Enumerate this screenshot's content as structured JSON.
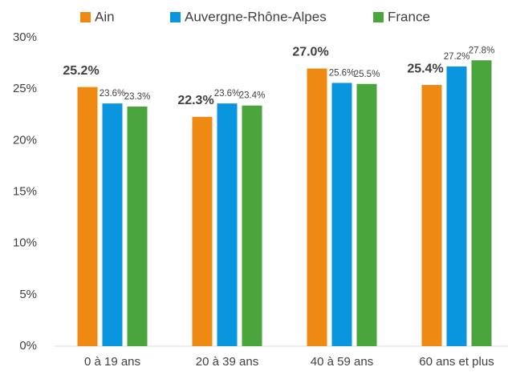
{
  "chart_data": {
    "type": "bar",
    "categories": [
      "0 à 19 ans",
      "20 à 39 ans",
      "40 à 59 ans",
      "60 ans et plus"
    ],
    "series": [
      {
        "name": "Ain",
        "color": "#ee8a12",
        "values": [
          25.2,
          22.3,
          27.0,
          25.4
        ],
        "value_labels": [
          "25.2%",
          "22.3%",
          "27.0%",
          "25.4%"
        ]
      },
      {
        "name": "Auvergne-Rhône-Alpes",
        "color": "#0a96de",
        "values": [
          23.6,
          23.6,
          25.6,
          27.2
        ],
        "value_labels": [
          "23.6%",
          "23.6%",
          "25.6%",
          "27.2%"
        ]
      },
      {
        "name": "France",
        "color": "#4aa63c",
        "values": [
          23.3,
          23.4,
          25.5,
          27.8
        ],
        "value_labels": [
          "23.3%",
          "23.4%",
          "25.5%",
          "27.8%"
        ]
      }
    ],
    "ylim": [
      0,
      30
    ],
    "yticks": [
      {
        "value": 0,
        "label": "0%"
      },
      {
        "value": 5,
        "label": "5%"
      },
      {
        "value": 10,
        "label": "10%"
      },
      {
        "value": 15,
        "label": "15%"
      },
      {
        "value": 20,
        "label": "20%"
      },
      {
        "value": 25,
        "label": "25%"
      },
      {
        "value": 30,
        "label": "30%"
      }
    ],
    "legend": "top"
  }
}
